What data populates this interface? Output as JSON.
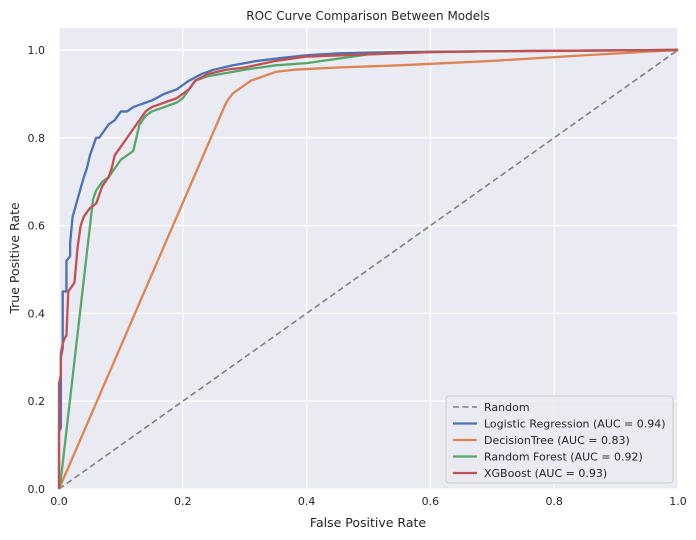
{
  "chart_data": {
    "type": "line",
    "title": "ROC Curve Comparison Between Models",
    "xlabel": "False Positive Rate",
    "ylabel": "True Positive Rate",
    "xlim": [
      0,
      1
    ],
    "ylim": [
      0,
      1.05
    ],
    "xticks": [
      "0.0",
      "0.2",
      "0.4",
      "0.6",
      "0.8",
      "1.0"
    ],
    "yticks": [
      "0.0",
      "0.2",
      "0.4",
      "0.6",
      "0.8",
      "1.0"
    ],
    "grid": true,
    "legend_position": "lower-right",
    "background": "#eaeaf2",
    "series": [
      {
        "name": "Random",
        "color": "#808080",
        "dashed": true,
        "x": [
          0,
          1
        ],
        "y": [
          0,
          1
        ]
      },
      {
        "name": "Logistic Regression (AUC = 0.94)",
        "color": "#4c72b0",
        "dashed": false,
        "x": [
          0,
          0,
          0.003,
          0.003,
          0.006,
          0.006,
          0.012,
          0.012,
          0.018,
          0.018,
          0.022,
          0.026,
          0.03,
          0.036,
          0.04,
          0.045,
          0.05,
          0.055,
          0.06,
          0.065,
          0.07,
          0.08,
          0.09,
          0.1,
          0.11,
          0.12,
          0.13,
          0.14,
          0.15,
          0.17,
          0.19,
          0.21,
          0.23,
          0.25,
          0.28,
          0.32,
          0.36,
          0.4,
          0.45,
          0.5,
          0.6,
          0.7,
          0.8,
          0.9,
          1.0
        ],
        "y": [
          0,
          0.13,
          0.14,
          0.3,
          0.32,
          0.45,
          0.45,
          0.52,
          0.53,
          0.56,
          0.62,
          0.64,
          0.66,
          0.69,
          0.71,
          0.73,
          0.76,
          0.78,
          0.8,
          0.8,
          0.81,
          0.83,
          0.84,
          0.86,
          0.86,
          0.87,
          0.875,
          0.88,
          0.885,
          0.9,
          0.91,
          0.93,
          0.945,
          0.955,
          0.965,
          0.975,
          0.982,
          0.988,
          0.992,
          0.994,
          0.996,
          0.997,
          0.998,
          0.999,
          1.0
        ]
      },
      {
        "name": "DecisionTree (AUC = 0.83)",
        "color": "#dd8452",
        "dashed": false,
        "x": [
          0,
          0.27,
          0.28,
          0.29,
          0.3,
          0.31,
          0.32,
          0.33,
          0.35,
          0.38,
          0.45,
          0.55,
          0.7,
          0.85,
          1.0
        ],
        "y": [
          0,
          0.88,
          0.9,
          0.91,
          0.92,
          0.93,
          0.935,
          0.94,
          0.95,
          0.955,
          0.96,
          0.965,
          0.975,
          0.988,
          1.0
        ]
      },
      {
        "name": "Random Forest (AUC = 0.92)",
        "color": "#55a868",
        "dashed": false,
        "x": [
          0,
          0.002,
          0.055,
          0.06,
          0.07,
          0.08,
          0.09,
          0.1,
          0.11,
          0.12,
          0.125,
          0.13,
          0.14,
          0.15,
          0.17,
          0.19,
          0.2,
          0.22,
          0.24,
          0.26,
          0.3,
          0.35,
          0.4,
          0.45,
          0.5,
          0.6,
          0.7,
          0.8,
          1.0
        ],
        "y": [
          0,
          0.01,
          0.66,
          0.68,
          0.7,
          0.71,
          0.73,
          0.75,
          0.76,
          0.77,
          0.8,
          0.83,
          0.85,
          0.86,
          0.87,
          0.88,
          0.89,
          0.93,
          0.94,
          0.945,
          0.955,
          0.965,
          0.97,
          0.98,
          0.99,
          0.995,
          0.997,
          0.998,
          1.0
        ]
      },
      {
        "name": "XGBoost (AUC = 0.93)",
        "color": "#c44e52",
        "dashed": false,
        "x": [
          0,
          0,
          0.003,
          0.003,
          0.006,
          0.008,
          0.012,
          0.015,
          0.02,
          0.025,
          0.03,
          0.035,
          0.04,
          0.05,
          0.055,
          0.06,
          0.065,
          0.07,
          0.075,
          0.08,
          0.085,
          0.09,
          0.1,
          0.11,
          0.12,
          0.13,
          0.14,
          0.15,
          0.17,
          0.19,
          0.21,
          0.22,
          0.24,
          0.27,
          0.3,
          0.35,
          0.4,
          0.5,
          0.6,
          0.7,
          0.8,
          0.9,
          1.0
        ],
        "y": [
          0,
          0.24,
          0.26,
          0.31,
          0.33,
          0.34,
          0.35,
          0.45,
          0.46,
          0.47,
          0.55,
          0.6,
          0.62,
          0.64,
          0.645,
          0.65,
          0.67,
          0.69,
          0.7,
          0.71,
          0.73,
          0.76,
          0.78,
          0.8,
          0.82,
          0.84,
          0.86,
          0.87,
          0.88,
          0.89,
          0.91,
          0.93,
          0.945,
          0.955,
          0.96,
          0.975,
          0.985,
          0.99,
          0.995,
          0.997,
          0.998,
          0.999,
          1.0
        ]
      }
    ]
  }
}
